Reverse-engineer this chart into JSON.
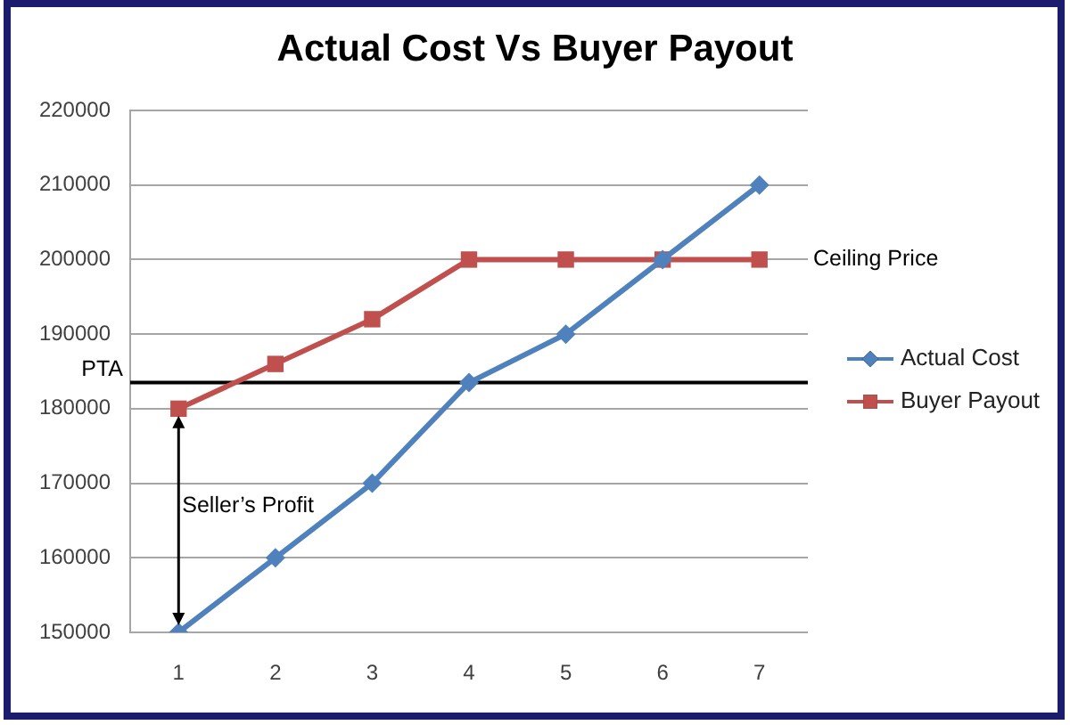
{
  "chart_data": {
    "type": "line",
    "title": "Actual Cost Vs Buyer Payout",
    "categories": [
      "1",
      "2",
      "3",
      "4",
      "5",
      "6",
      "7"
    ],
    "series": [
      {
        "name": "Actual Cost",
        "color": "#4f81bd",
        "marker": "diamond",
        "values": [
          150000,
          160000,
          170000,
          183500,
          190000,
          200000,
          210000
        ]
      },
      {
        "name": "Buyer Payout",
        "color": "#c0504d",
        "marker": "square",
        "values": [
          180000,
          186000,
          192000,
          200000,
          200000,
          200000,
          200000
        ]
      }
    ],
    "ylim": [
      150000,
      220000
    ],
    "yticks": [
      150000,
      160000,
      170000,
      180000,
      190000,
      200000,
      210000,
      220000
    ],
    "grid": "y",
    "legend": "right",
    "ref_lines": [
      {
        "axis": "y",
        "value": 183500,
        "label": "PTA",
        "color": "#000000"
      }
    ],
    "annotations": [
      "Ceiling Price",
      "Seller’s Profit"
    ]
  }
}
